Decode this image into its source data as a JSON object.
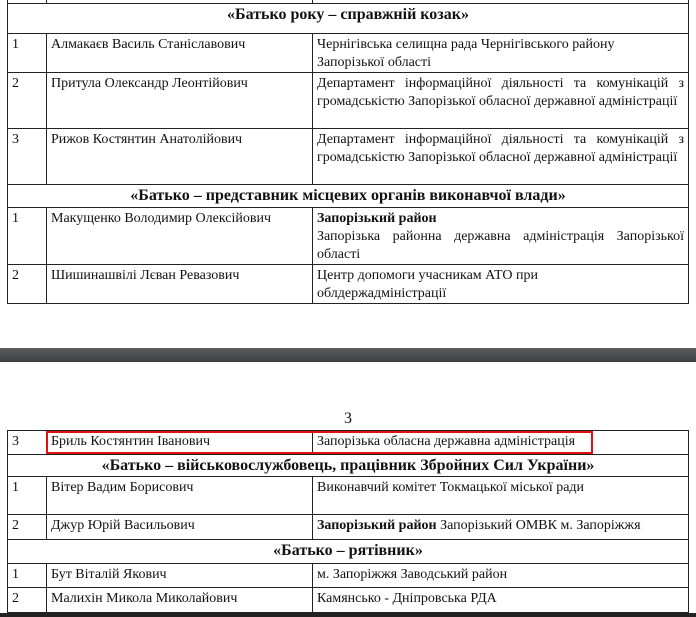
{
  "page_number": "3",
  "highlight_color": "#e01010",
  "section1": {
    "title": "«Батько року – справжній козак»",
    "rows": [
      {
        "n": "1",
        "name": "Алмакаєв Василь Станіславович",
        "org": "Чернігівська селищна рада Чернігівського району Запорізької області"
      },
      {
        "n": "2",
        "name": "Притула Олександр Леонтійович",
        "org": "Департамент інформаційної діяльності та комунікацій з громадськістю Запорізької обласної державної адміністрації"
      },
      {
        "n": "3",
        "name": "Рижов Костянтин Анатолійович",
        "org": "Департамент інформаційної діяльності та комунікацій з громадськістю Запорізької обласної державної адміністрації"
      }
    ]
  },
  "section2": {
    "title": "«Батько – представник місцевих органів виконавчої влади»",
    "rows": [
      {
        "n": "1",
        "name": "Макущенко Володимир Олексійович",
        "org_bold": "Запорізький район",
        "org": "Запорізька районна державна адміністрація Запорізької області"
      },
      {
        "n": "2",
        "name": "Шишинашвілі Лєван Ревазович",
        "org": "Центр допомоги учасникам АТО при облдержадміністрації"
      }
    ]
  },
  "continued_row": {
    "n": "3",
    "name": "Бриль Костянтин Іванович",
    "org": "Запорізька обласна державна адміністрація"
  },
  "section3": {
    "title": "«Батько – військовослужбовець, працівник Збройних Сил України»",
    "rows": [
      {
        "n": "1",
        "name": "Вітер Вадим Борисович",
        "org": "Виконавчий комітет Токмацької міської ради"
      },
      {
        "n": "2",
        "name": "Джур Юрій Васильович",
        "org_bold": "Запорізький район",
        "org": "Запорізький ОМВК м. Запоріжжя"
      }
    ]
  },
  "section4": {
    "title": "«Батько – рятівник»",
    "rows": [
      {
        "n": "1",
        "name": "Бут Віталій Якович",
        "org": "м. Запоріжжя Заводський район"
      },
      {
        "n": "2",
        "name": "Малихін Микола Миколайович",
        "org": "Камянсько - Дніпровська РДА"
      }
    ]
  }
}
